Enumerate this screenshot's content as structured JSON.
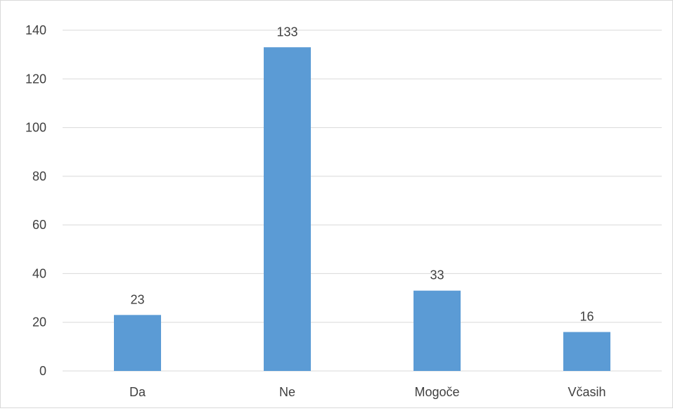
{
  "chart_data": {
    "type": "bar",
    "categories": [
      "Da",
      "Ne",
      "Mogoče",
      "Včasih"
    ],
    "values": [
      23,
      133,
      33,
      16
    ],
    "data_labels": [
      "23",
      "133",
      "33",
      "16"
    ],
    "title": "",
    "xlabel": "",
    "ylabel": "",
    "ylim": [
      0,
      140
    ],
    "yticks": [
      0,
      20,
      40,
      60,
      80,
      100,
      120,
      140
    ],
    "ytick_labels": [
      "0",
      "20",
      "40",
      "60",
      "80",
      "100",
      "120",
      "140"
    ],
    "grid": true,
    "legend": "none",
    "colors": {
      "bar": "#5b9bd5",
      "grid": "#d9d9d9",
      "text": "#404040"
    }
  }
}
